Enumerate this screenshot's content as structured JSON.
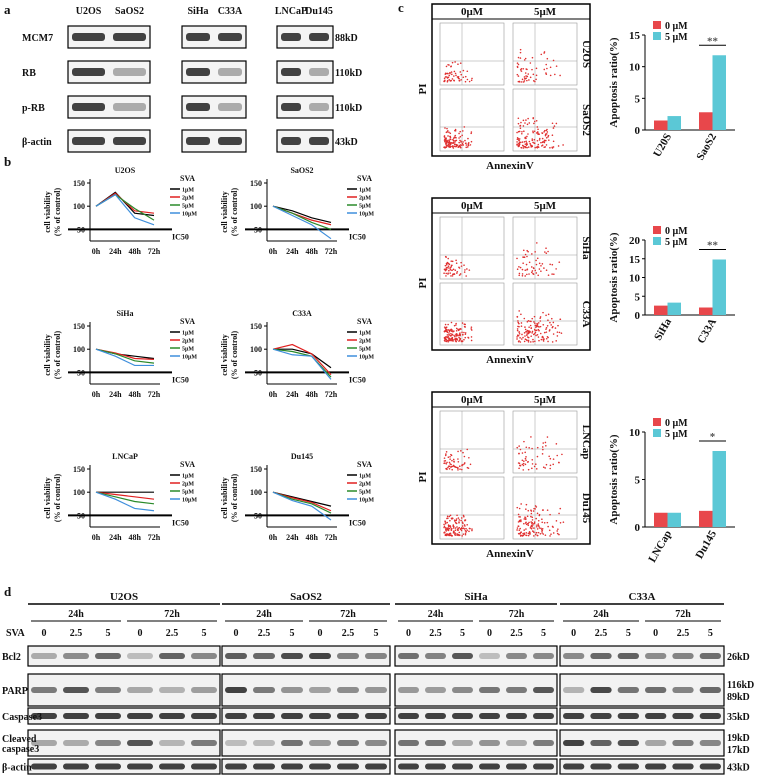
{
  "panel_labels": [
    "a",
    "b",
    "c",
    "d"
  ],
  "blot_a": {
    "groups": [
      [
        "U2OS",
        "SaOS2"
      ],
      [
        "SiHa",
        "C33A"
      ],
      [
        "LNCaP",
        "Du145"
      ]
    ],
    "rows": [
      "MCM7",
      "RB",
      "p-RB",
      "β-actin"
    ],
    "sizes": [
      "88kD",
      "110kD",
      "110kD",
      "43kD"
    ]
  },
  "chart_data": [
    {
      "type": "line",
      "title": "U2OS",
      "y_label": [
        "cell viability",
        "(% of control)"
      ],
      "legend_title": "SVA",
      "categories": [
        "0h",
        "24h",
        "48h",
        "72h"
      ],
      "series": [
        {
          "name": "1μM",
          "color": "#000000",
          "values": [
            100,
            130,
            85,
            80
          ]
        },
        {
          "name": "2μM",
          "color": "#e02020",
          "values": [
            100,
            128,
            90,
            85
          ]
        },
        {
          "name": "5μM",
          "color": "#2a8a2a",
          "values": [
            100,
            125,
            95,
            70
          ]
        },
        {
          "name": "10μM",
          "color": "#3f8fdc",
          "values": [
            100,
            125,
            75,
            60
          ]
        }
      ],
      "ylim": [
        25,
        150
      ],
      "yticks": [
        50,
        100,
        150
      ],
      "reference_line": {
        "value": 50,
        "label": "IC50"
      }
    },
    {
      "type": "line",
      "title": "SaOS2",
      "y_label": [
        "cell viability",
        "(% of control)"
      ],
      "legend_title": "SVA",
      "categories": [
        "0h",
        "24h",
        "48h",
        "72h"
      ],
      "series": [
        {
          "name": "1μM",
          "color": "#000000",
          "values": [
            100,
            90,
            75,
            65
          ]
        },
        {
          "name": "2μM",
          "color": "#e02020",
          "values": [
            100,
            85,
            70,
            60
          ]
        },
        {
          "name": "5μM",
          "color": "#2a8a2a",
          "values": [
            100,
            85,
            65,
            50
          ]
        },
        {
          "name": "10μM",
          "color": "#3f8fdc",
          "values": [
            100,
            80,
            60,
            30
          ]
        }
      ],
      "ylim": [
        25,
        150
      ],
      "yticks": [
        50,
        100,
        150
      ],
      "reference_line": {
        "value": 50,
        "label": "IC50"
      }
    },
    {
      "type": "line",
      "title": "SiHa",
      "y_label": [
        "cell viability",
        "(% of control)"
      ],
      "legend_title": "SVA",
      "categories": [
        "0h",
        "24h",
        "48h",
        "72h"
      ],
      "series": [
        {
          "name": "1μM",
          "color": "#000000",
          "values": [
            100,
            90,
            85,
            80
          ]
        },
        {
          "name": "2μM",
          "color": "#e02020",
          "values": [
            100,
            92,
            80,
            78
          ]
        },
        {
          "name": "5μM",
          "color": "#2a8a2a",
          "values": [
            100,
            90,
            75,
            70
          ]
        },
        {
          "name": "10μM",
          "color": "#3f8fdc",
          "values": [
            100,
            85,
            65,
            65
          ]
        }
      ],
      "ylim": [
        25,
        150
      ],
      "yticks": [
        50,
        100,
        150
      ],
      "reference_line": {
        "value": 50,
        "label": "IC50"
      }
    },
    {
      "type": "line",
      "title": "C33A",
      "y_label": [
        "cell viability",
        "(% of control)"
      ],
      "legend_title": "SVA",
      "categories": [
        "0h",
        "24h",
        "48h",
        "72h"
      ],
      "series": [
        {
          "name": "1μM",
          "color": "#000000",
          "values": [
            100,
            100,
            90,
            60
          ]
        },
        {
          "name": "2μM",
          "color": "#e02020",
          "values": [
            100,
            110,
            90,
            45
          ]
        },
        {
          "name": "5μM",
          "color": "#2a8a2a",
          "values": [
            100,
            95,
            85,
            40
          ]
        },
        {
          "name": "10μM",
          "color": "#3f8fdc",
          "values": [
            100,
            88,
            85,
            35
          ]
        }
      ],
      "ylim": [
        25,
        150
      ],
      "yticks": [
        50,
        100,
        150
      ],
      "reference_line": {
        "value": 50,
        "label": "IC50"
      }
    },
    {
      "type": "line",
      "title": "LNCaP",
      "y_label": [
        "cell viability",
        "(% of control)"
      ],
      "legend_title": "SVA",
      "categories": [
        "0h",
        "24h",
        "48h",
        "72h"
      ],
      "series": [
        {
          "name": "1μM",
          "color": "#000000",
          "values": [
            100,
            100,
            100,
            100
          ]
        },
        {
          "name": "2μM",
          "color": "#e02020",
          "values": [
            100,
            95,
            90,
            85
          ]
        },
        {
          "name": "5μM",
          "color": "#2a8a2a",
          "values": [
            100,
            90,
            80,
            75
          ]
        },
        {
          "name": "10μM",
          "color": "#3f8fdc",
          "values": [
            100,
            85,
            65,
            60
          ]
        }
      ],
      "ylim": [
        25,
        150
      ],
      "yticks": [
        50,
        100,
        150
      ],
      "reference_line": {
        "value": 50,
        "label": "IC50"
      }
    },
    {
      "type": "line",
      "title": "Du145",
      "y_label": [
        "cell viability",
        "(% of control)"
      ],
      "legend_title": "SVA",
      "categories": [
        "0h",
        "24h",
        "48h",
        "72h"
      ],
      "series": [
        {
          "name": "1μM",
          "color": "#000000",
          "values": [
            100,
            90,
            80,
            70
          ]
        },
        {
          "name": "2μM",
          "color": "#e02020",
          "values": [
            100,
            88,
            78,
            60
          ]
        },
        {
          "name": "5μM",
          "color": "#2a8a2a",
          "values": [
            100,
            85,
            75,
            55
          ]
        },
        {
          "name": "10μM",
          "color": "#3f8fdc",
          "values": [
            100,
            82,
            70,
            40
          ]
        }
      ],
      "ylim": [
        25,
        150
      ],
      "yticks": [
        50,
        100,
        150
      ],
      "reference_line": {
        "value": 50,
        "label": "IC50"
      }
    },
    {
      "type": "bar",
      "y_label": "Apoptosis ratio(%)",
      "categories": [
        "U20S",
        "SaoS2"
      ],
      "series": [
        {
          "name": "0 μM",
          "color": "#e8474b",
          "values": [
            1.5,
            2.8
          ]
        },
        {
          "name": "5 μM",
          "color": "#5bc8d6",
          "values": [
            2.2,
            11.8
          ]
        }
      ],
      "ylim": [
        0,
        15
      ],
      "yticks": [
        0,
        5,
        10,
        15
      ],
      "annotation": "**"
    },
    {
      "type": "bar",
      "y_label": "Apoptosis ratio(%)",
      "categories": [
        "SiHa",
        "C33A"
      ],
      "series": [
        {
          "name": "0 μM",
          "color": "#e8474b",
          "values": [
            2.5,
            2.0
          ]
        },
        {
          "name": "5 μM",
          "color": "#5bc8d6",
          "values": [
            3.3,
            14.8
          ]
        }
      ],
      "ylim": [
        0,
        20
      ],
      "yticks": [
        0,
        5,
        10,
        15,
        20
      ],
      "annotation": "**"
    },
    {
      "type": "bar",
      "y_label": "Apoptosis ratio(%)",
      "categories": [
        "LNCap",
        "Du145"
      ],
      "series": [
        {
          "name": "0 μM",
          "color": "#e8474b",
          "values": [
            1.5,
            1.7
          ]
        },
        {
          "name": "5 μM",
          "color": "#5bc8d6",
          "values": [
            1.5,
            8.0
          ]
        }
      ],
      "ylim": [
        0,
        10
      ],
      "yticks": [
        0,
        5,
        10
      ],
      "annotation": "*"
    }
  ],
  "flow": [
    {
      "columns": [
        "0μM",
        "5μM"
      ],
      "rows": [
        "U2OS",
        "SaOS2"
      ],
      "y_label": "PI",
      "x_label": "AnnexinV"
    },
    {
      "columns": [
        "0μM",
        "5μM"
      ],
      "rows": [
        "SiHa",
        "C33A"
      ],
      "y_label": "PI",
      "x_label": "AnnexinV"
    },
    {
      "columns": [
        "0μM",
        "5μM"
      ],
      "rows": [
        "LNCap",
        "Du145"
      ],
      "y_label": "PI",
      "x_label": "AnnexinV"
    }
  ],
  "blot_d": {
    "treatment": "SVA",
    "cell_lines": [
      "U2OS",
      "SaOS2",
      "SiHa",
      "C33A"
    ],
    "times": [
      "24h",
      "72h"
    ],
    "doses": [
      "0",
      "2.5",
      "5"
    ],
    "rows": [
      {
        "label": [
          "Bcl2"
        ],
        "sizes": [
          "26kD"
        ]
      },
      {
        "label": [
          "PARP"
        ],
        "sizes": [
          "116kD",
          "89kD"
        ]
      },
      {
        "label": [
          "Caspase3"
        ],
        "sizes": [
          "35kD"
        ]
      },
      {
        "label": [
          "Cleaved",
          "caspase3"
        ],
        "sizes": [
          "19kD",
          "17kD"
        ]
      },
      {
        "label": [
          "β-actin"
        ],
        "sizes": [
          "43kD"
        ]
      }
    ]
  }
}
